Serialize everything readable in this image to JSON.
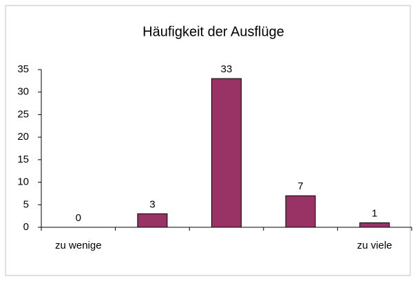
{
  "chart_data": {
    "type": "bar",
    "title": "Häufigkeit der Ausflüge",
    "categories": [
      "zu wenige",
      null,
      null,
      null,
      "zu viele"
    ],
    "values": [
      0,
      3,
      33,
      7,
      1
    ],
    "color": "#993366",
    "ylim": [
      0,
      35
    ],
    "yticks": [
      0,
      5,
      10,
      15,
      20,
      25,
      30,
      35
    ],
    "grid": false
  }
}
